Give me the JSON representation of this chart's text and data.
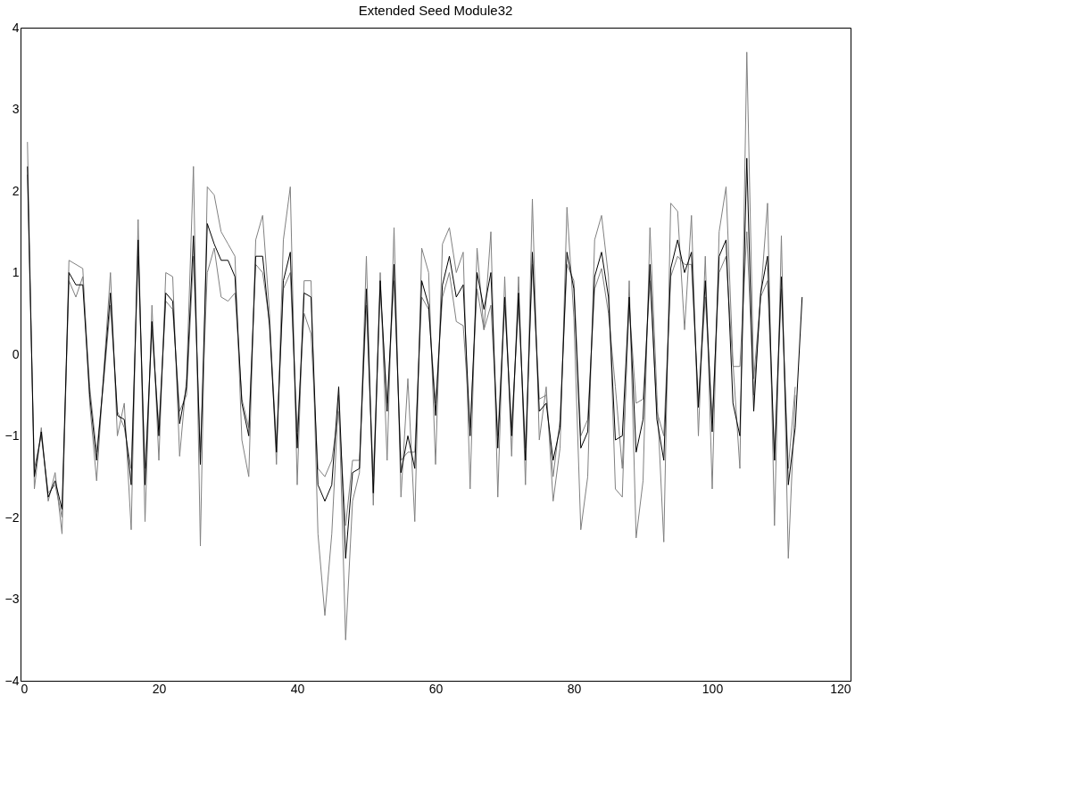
{
  "chart_data": {
    "type": "line",
    "title": "Extended Seed Module32",
    "x": [
      1,
      2,
      3,
      4,
      5,
      6,
      7,
      8,
      9,
      10,
      11,
      12,
      13,
      14,
      15,
      16,
      17,
      18,
      19,
      20,
      21,
      22,
      23,
      24,
      25,
      26,
      27,
      28,
      29,
      30,
      31,
      32,
      33,
      34,
      35,
      36,
      37,
      38,
      39,
      40,
      41,
      42,
      43,
      44,
      45,
      46,
      47,
      48,
      49,
      50,
      51,
      52,
      53,
      54,
      55,
      56,
      57,
      58,
      59,
      60,
      61,
      62,
      63,
      64,
      65,
      66,
      67,
      68,
      69,
      70,
      71,
      72,
      73,
      74,
      75,
      76,
      77,
      78,
      79,
      80,
      81,
      82,
      83,
      84,
      85,
      86,
      87,
      88,
      89,
      90,
      91,
      92,
      93,
      94,
      95,
      96,
      97,
      98,
      99,
      100,
      101,
      102,
      103,
      104,
      105,
      106,
      107,
      108,
      109,
      110,
      111,
      112,
      113
    ],
    "series": [
      {
        "color": "#808080",
        "values": [
          2.6,
          -1.65,
          -0.9,
          -1.8,
          -1.45,
          -2.2,
          1.15,
          1.1,
          1.05,
          -0.6,
          -1.55,
          -0.25,
          1.0,
          -1.0,
          -0.6,
          -2.15,
          1.65,
          -2.05,
          0.6,
          -1.3,
          1.0,
          0.95,
          -1.25,
          -0.3,
          2.3,
          -2.35,
          2.05,
          1.95,
          1.5,
          1.35,
          1.2,
          -1.05,
          -1.5,
          1.4,
          1.7,
          0.5,
          -1.35,
          1.4,
          2.05,
          -1.6,
          0.9,
          0.9,
          -2.2,
          -3.2,
          -2.2,
          -0.5,
          -3.5,
          -1.8,
          -1.45,
          1.2,
          -1.85,
          1.0,
          -1.3,
          1.55,
          -1.75,
          -0.3,
          -2.05,
          1.3,
          1.0,
          -1.35,
          1.35,
          1.55,
          1.0,
          1.25,
          -1.65,
          1.3,
          0.3,
          1.5,
          -1.75,
          0.95,
          -1.25,
          0.95,
          -1.6,
          1.9,
          -1.05,
          -0.4,
          -1.8,
          -1.15,
          1.8,
          0.45,
          -2.15,
          -1.5,
          1.4,
          1.7,
          0.95,
          -1.65,
          -1.75,
          0.9,
          -2.25,
          -1.55,
          1.55,
          -0.5,
          -2.3,
          1.85,
          1.75,
          0.3,
          1.7,
          -1.0,
          1.2,
          -1.65,
          1.5,
          2.05,
          -0.1,
          -1.4,
          3.7,
          -0.3,
          0.7,
          1.85,
          -2.1,
          1.45,
          -2.5,
          -0.5,
          null
        ]
      },
      {
        "color": "#808080",
        "values": [
          2.2,
          -1.4,
          -1.0,
          -1.7,
          -1.6,
          -2.0,
          0.9,
          0.7,
          0.95,
          -0.4,
          -1.2,
          -0.35,
          0.6,
          -0.7,
          -0.9,
          -1.4,
          1.2,
          -1.4,
          0.3,
          -0.9,
          0.65,
          0.55,
          -0.7,
          -0.5,
          1.2,
          -1.2,
          1.0,
          1.3,
          0.7,
          0.65,
          0.75,
          -0.55,
          -0.9,
          1.1,
          1.0,
          0.4,
          -1.1,
          0.8,
          1.0,
          -0.95,
          0.5,
          0.25,
          -1.4,
          -1.5,
          -1.3,
          -0.7,
          -2.1,
          -1.3,
          -1.3,
          0.6,
          -1.5,
          0.8,
          -0.6,
          0.9,
          -1.3,
          -1.2,
          -1.2,
          0.7,
          0.55,
          -0.6,
          0.7,
          1.0,
          0.4,
          0.35,
          -0.9,
          0.8,
          0.3,
          0.6,
          -1.0,
          0.6,
          -0.9,
          0.6,
          -1.15,
          1.1,
          -0.55,
          -0.5,
          -1.5,
          -0.8,
          1.1,
          0.9,
          -1.0,
          -0.8,
          0.8,
          1.05,
          0.5,
          -0.4,
          -1.4,
          0.6,
          -0.6,
          -0.55,
          0.9,
          -0.7,
          -1.0,
          0.95,
          1.2,
          1.1,
          1.1,
          -0.6,
          0.7,
          -0.8,
          1.0,
          1.2,
          -0.15,
          -0.15,
          1.5,
          -0.5,
          0.7,
          0.9,
          -1.3,
          0.8,
          -1.4,
          -0.4,
          null
        ]
      },
      {
        "color": "#000000",
        "values": [
          2.3,
          -1.5,
          -0.95,
          -1.75,
          -1.55,
          -1.9,
          1.0,
          0.85,
          0.85,
          -0.5,
          -1.3,
          -0.3,
          0.75,
          -0.75,
          -0.8,
          -1.6,
          1.4,
          -1.6,
          0.4,
          -1.0,
          0.75,
          0.65,
          -0.85,
          -0.4,
          1.45,
          -1.35,
          1.6,
          1.35,
          1.15,
          1.15,
          0.95,
          -0.6,
          -1.0,
          1.2,
          1.2,
          0.35,
          -1.2,
          0.9,
          1.25,
          -1.15,
          0.75,
          0.7,
          -1.6,
          -1.8,
          -1.6,
          -0.4,
          -2.5,
          -1.45,
          -1.4,
          0.8,
          -1.7,
          0.9,
          -0.7,
          1.1,
          -1.45,
          -1.0,
          -1.4,
          0.9,
          0.6,
          -0.75,
          0.85,
          1.2,
          0.7,
          0.85,
          -1.0,
          1.0,
          0.55,
          1.0,
          -1.15,
          0.7,
          -1.0,
          0.75,
          -1.3,
          1.25,
          -0.7,
          -0.6,
          -1.3,
          -0.9,
          1.25,
          0.8,
          -1.15,
          -0.95,
          0.95,
          1.25,
          0.7,
          -1.05,
          -1.0,
          0.7,
          -1.2,
          -0.8,
          1.1,
          -0.8,
          -1.3,
          1.05,
          1.4,
          1.0,
          1.25,
          -0.65,
          0.9,
          -0.95,
          1.2,
          1.4,
          -0.6,
          -1.0,
          2.4,
          -0.7,
          0.75,
          1.2,
          -1.3,
          0.95,
          -1.6,
          -0.9,
          0.7
        ]
      }
    ],
    "xlim": [
      0,
      120
    ],
    "xticks": [
      0,
      20,
      40,
      60,
      80,
      100,
      120
    ],
    "ylim": [
      -4,
      4
    ],
    "yticks": [
      -4,
      -3,
      -2,
      -1,
      0,
      1,
      2,
      3,
      4
    ],
    "grid": false,
    "legend": false,
    "marker": "none",
    "line_style": "solid"
  }
}
